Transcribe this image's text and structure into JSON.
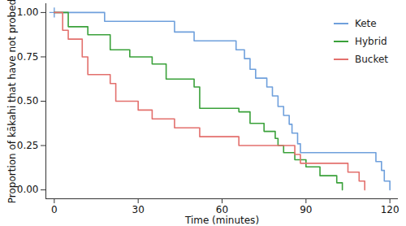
{
  "chart_data": {
    "type": "line",
    "x_label": "Time (minutes)",
    "y_label": "Proportion of kākahi that have not probed",
    "xlim": [
      -3,
      123
    ],
    "xticks": [
      0,
      30,
      60,
      90,
      120
    ],
    "ylim": [
      -0.05,
      1.05
    ],
    "yticks": [
      {
        "value": 0,
        "label": "0.00"
      },
      {
        "value": 0.25,
        "label": "0.25"
      },
      {
        "value": 0.5,
        "label": "0.50"
      },
      {
        "value": 0.75,
        "label": "0.75"
      },
      {
        "value": 1,
        "label": "1.00"
      }
    ],
    "line_style": "step",
    "grid": false,
    "legend": "top-right",
    "series": [
      {
        "name": "Kete",
        "color": "#6fa0dc",
        "x": [
          0,
          18,
          43,
          50,
          65,
          68,
          70,
          72,
          76,
          78,
          80,
          82,
          84,
          85,
          87,
          88,
          115,
          117,
          118,
          120
        ],
        "values": [
          1,
          0.95,
          0.89,
          0.84,
          0.79,
          0.74,
          0.68,
          0.63,
          0.58,
          0.53,
          0.47,
          0.42,
          0.37,
          0.32,
          0.26,
          0.21,
          0.16,
          0.11,
          0.05,
          0
        ],
        "censored_x": [
          0
        ],
        "censored_values": [
          1
        ]
      },
      {
        "name": "Hybrid",
        "color": "#3aa13a",
        "x": [
          0,
          5,
          12,
          20,
          27,
          35,
          40,
          50,
          52,
          66,
          70,
          75,
          79,
          80,
          82,
          86,
          90,
          95,
          101,
          103
        ],
        "values": [
          1,
          0.92,
          0.875,
          0.79,
          0.75,
          0.71,
          0.625,
          0.58,
          0.46,
          0.44,
          0.375,
          0.33,
          0.29,
          0.25,
          0.21,
          0.17,
          0.13,
          0.08,
          0.04,
          0
        ]
      },
      {
        "name": "Bucket",
        "color": "#e3706d",
        "x": [
          0,
          3,
          5,
          10,
          12,
          20,
          22,
          30,
          35,
          43,
          52,
          66,
          86,
          88,
          105,
          109,
          111
        ],
        "values": [
          1,
          0.9,
          0.85,
          0.75,
          0.65,
          0.6,
          0.5,
          0.45,
          0.4,
          0.35,
          0.3,
          0.25,
          0.2,
          0.15,
          0.1,
          0.05,
          0
        ]
      }
    ]
  }
}
